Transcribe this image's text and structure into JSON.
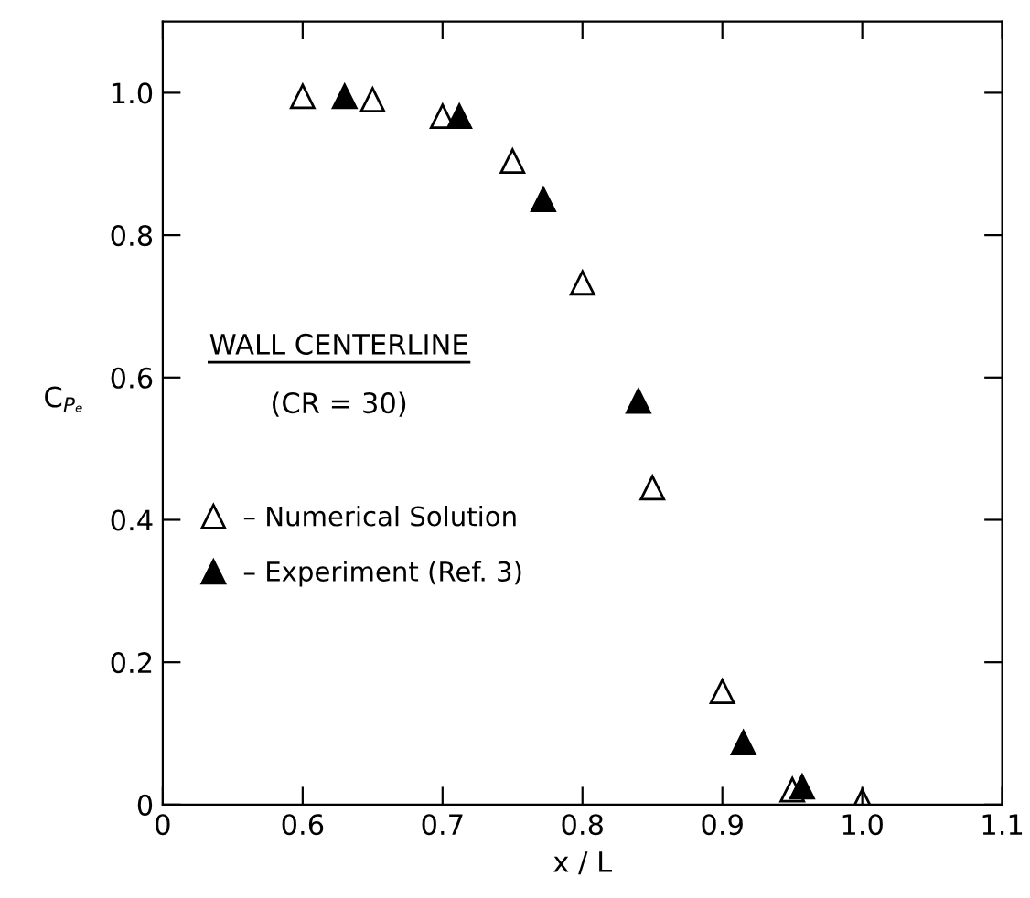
{
  "chart_data": {
    "type": "scatter",
    "xlabel": "x / L",
    "ylabel": "C$_{Pₑ}$",
    "annotations": [
      "WALL CENTERLINE",
      "(CR = 30)"
    ],
    "series": [
      {
        "name": "– Numerical Solution",
        "color": "#000000",
        "marker": "triangle",
        "x": [
          0.6,
          0.65,
          0.7,
          0.75,
          0.8,
          0.85,
          0.9,
          0.95,
          1.0
        ],
        "values": [
          0.995,
          0.99,
          0.967,
          0.904,
          0.733,
          0.445,
          0.159,
          0.021,
          0.005
        ]
      },
      {
        "name": "– Experiment (Ref. 3)",
        "color": "#000000",
        "marker": "triangle",
        "x": [
          0.63,
          0.712,
          0.772,
          0.84,
          0.915,
          0.957
        ],
        "values": [
          0.995,
          0.967,
          0.85,
          0.567,
          0.087,
          0.025
        ]
      }
    ],
    "xlim": [
      0.5,
      1.1
    ],
    "xticks": [
      {
        "value": 0.5,
        "label": "0"
      },
      0.6,
      0.7,
      0.8,
      0.9,
      {
        "value": 1.0,
        "label": "1.0"
      },
      1.1
    ],
    "ylim": [
      0,
      1.1
    ],
    "yticks": [
      0,
      0.2,
      0.4,
      0.6,
      0.8,
      {
        "value": 1.0,
        "label": "1.0"
      }
    ],
    "grid": false,
    "legend": "left"
  }
}
